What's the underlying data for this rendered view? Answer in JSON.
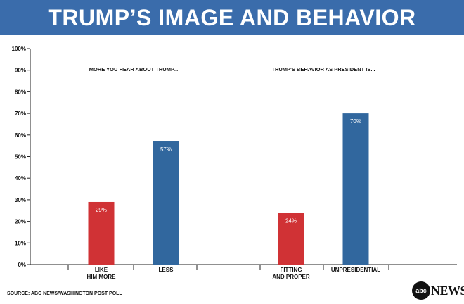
{
  "header": {
    "title": "TRUMP’S IMAGE AND BEHAVIOR"
  },
  "footer": {
    "source": "SOURCE: ABC NEWS/WASHINGTON POST POLL",
    "logo_circle": "abc",
    "logo_text": "NEWS"
  },
  "colors": {
    "banner": "#3a6cab",
    "red": "#d03235",
    "blue": "#31679e"
  },
  "chart_data": {
    "type": "bar",
    "title": "TRUMP’S IMAGE AND BEHAVIOR",
    "ylim": [
      0,
      100
    ],
    "yticks": [
      "0%",
      "10%",
      "20%",
      "30%",
      "40%",
      "50%",
      "60%",
      "70%",
      "80%",
      "90%",
      "100%"
    ],
    "groups": [
      {
        "title": "MORE YOU HEAR ABOUT TRUMP...",
        "bars": [
          {
            "label": [
              "LIKE",
              "HIM MORE"
            ],
            "value": 29,
            "value_label": "29%",
            "color": "#d03235"
          },
          {
            "label": [
              "LESS"
            ],
            "value": 57,
            "value_label": "57%",
            "color": "#31679e"
          }
        ]
      },
      {
        "title": "TRUMP'S BEHAVIOR AS PRESIDENT IS...",
        "bars": [
          {
            "label": [
              "FITTING",
              "AND PROPER"
            ],
            "value": 24,
            "value_label": "24%",
            "color": "#d03235"
          },
          {
            "label": [
              "UNPRESIDENTIAL"
            ],
            "value": 70,
            "value_label": "70%",
            "color": "#31679e"
          }
        ]
      }
    ]
  }
}
